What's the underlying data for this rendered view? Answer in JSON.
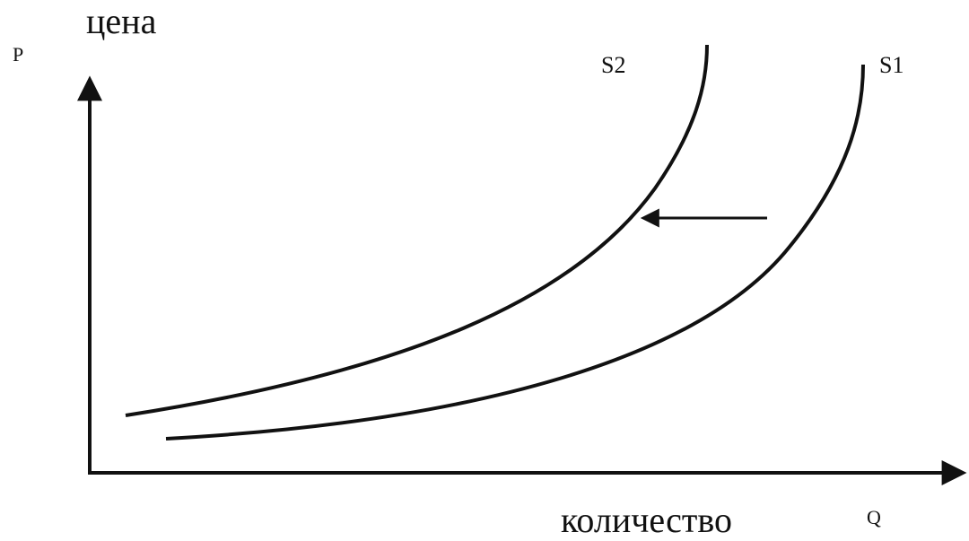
{
  "labels": {
    "price_word": "цена",
    "price_axis": "P",
    "quantity_word": "количество",
    "quantity_axis": "Q",
    "curve_s2": "S2",
    "curve_s1": "S1"
  },
  "colors": {
    "line": "#111111",
    "background": "#ffffff"
  }
}
